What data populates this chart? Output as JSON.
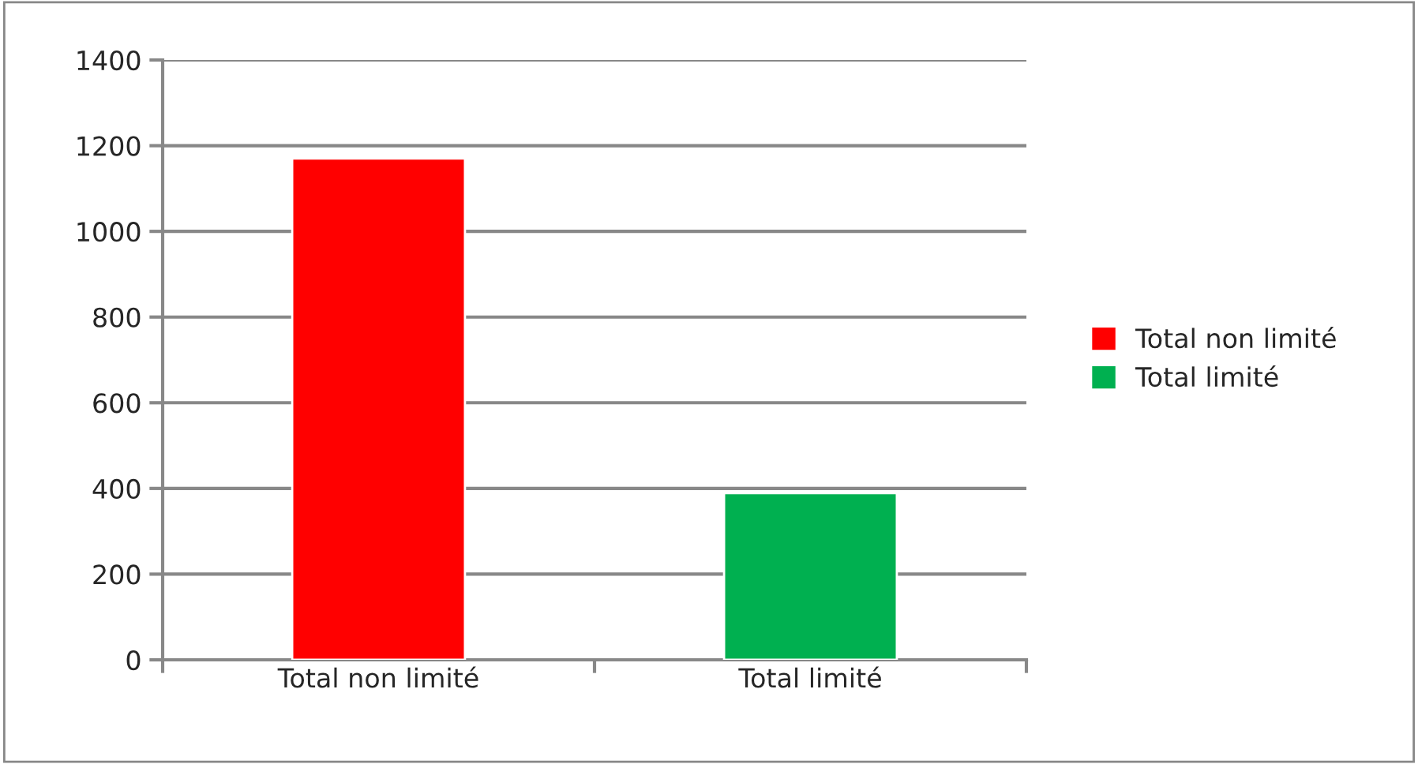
{
  "chart_data": {
    "type": "bar",
    "categories": [
      "Total non limité",
      "Total limité"
    ],
    "series": [
      {
        "name": "Total non limité",
        "color": "#ff0000",
        "values": [
          1170,
          null
        ]
      },
      {
        "name": "Total limité",
        "color": "#00b050",
        "values": [
          null,
          389
        ]
      }
    ],
    "ylim": [
      0,
      1400
    ],
    "yticks": [
      0,
      200,
      400,
      600,
      800,
      1000,
      1200,
      1400
    ],
    "grid": "y",
    "legend": "right"
  }
}
